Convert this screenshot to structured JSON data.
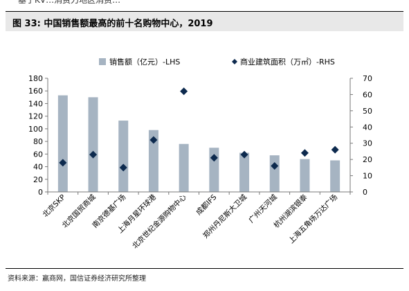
{
  "top_text": "基于KV…消费力地区消费…",
  "figure_title": "图 33: 中国销售额最高的前十名购物中心，2019",
  "source": "资料来源：赢商网，国信证券经济研究所整理",
  "colors": {
    "bar": "#a6b4c2",
    "marker": "#0d2a4e",
    "axis": "#777777"
  },
  "chart_data": {
    "type": "bar",
    "categories": [
      "北京SKP",
      "北京国贸商城",
      "南京德基广场",
      "上海月星环球港",
      "北京世纪金源购物中心",
      "成都IFS",
      "郑州丹尼斯大卫城",
      "广州天河城",
      "杭州湖滨银泰",
      "上海五角场万达广场"
    ],
    "series": [
      {
        "name": "销售额（亿元）-LHS",
        "type": "bar",
        "axis": "left",
        "values": [
          153,
          150,
          113,
          98,
          76,
          70,
          62,
          58,
          52,
          50
        ]
      },
      {
        "name": "商业建筑面积（万㎡）-RHS",
        "type": "scatter",
        "axis": "right",
        "marker": "diamond",
        "values": [
          18,
          23,
          15,
          32,
          62,
          21,
          23,
          16,
          24,
          26
        ]
      }
    ],
    "y_left": {
      "min": 0,
      "max": 180,
      "ticks": [
        0,
        20,
        40,
        60,
        80,
        100,
        120,
        140,
        160,
        180
      ]
    },
    "y_right": {
      "min": 0,
      "max": 70,
      "ticks": [
        0,
        10,
        20,
        30,
        40,
        50,
        60,
        70
      ]
    },
    "grid": false,
    "legend_position": "top"
  }
}
